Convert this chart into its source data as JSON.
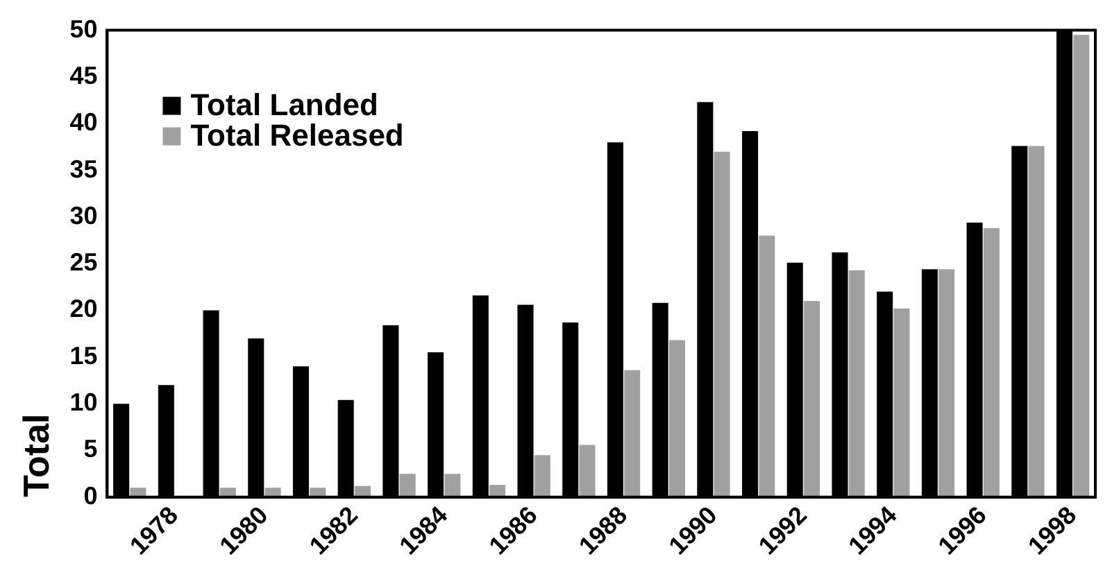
{
  "chart_data": {
    "type": "bar",
    "ylabel": "Total",
    "categories": [
      null,
      "1978",
      null,
      "1980",
      null,
      "1982",
      null,
      "1984",
      null,
      "1986",
      null,
      "1988",
      null,
      "1990",
      null,
      "1992",
      null,
      "1994",
      null,
      "1996",
      null,
      "1998"
    ],
    "series": [
      {
        "name": "Total Landed",
        "color": "#000000",
        "values": [
          10,
          12,
          20,
          17,
          14,
          10.4,
          18.4,
          15.5,
          21.6,
          20.6,
          18.7,
          38,
          20.8,
          42.3,
          39.2,
          25.1,
          26.2,
          22,
          24.4,
          29.4,
          37.6,
          50
        ]
      },
      {
        "name": "Total Released",
        "color": "#a0a0a0",
        "values": [
          1,
          0,
          1,
          1,
          1,
          1.2,
          2.5,
          2.5,
          1.3,
          4.5,
          5.6,
          13.6,
          16.8,
          37,
          28,
          21,
          24.3,
          20.2,
          24.4,
          28.8,
          37.6,
          49.5
        ]
      }
    ],
    "ylim": [
      0,
      50
    ],
    "yticks": [
      0,
      5,
      10,
      15,
      20,
      25,
      30,
      35,
      40,
      45,
      50
    ],
    "grid": false,
    "legend": "top left"
  }
}
